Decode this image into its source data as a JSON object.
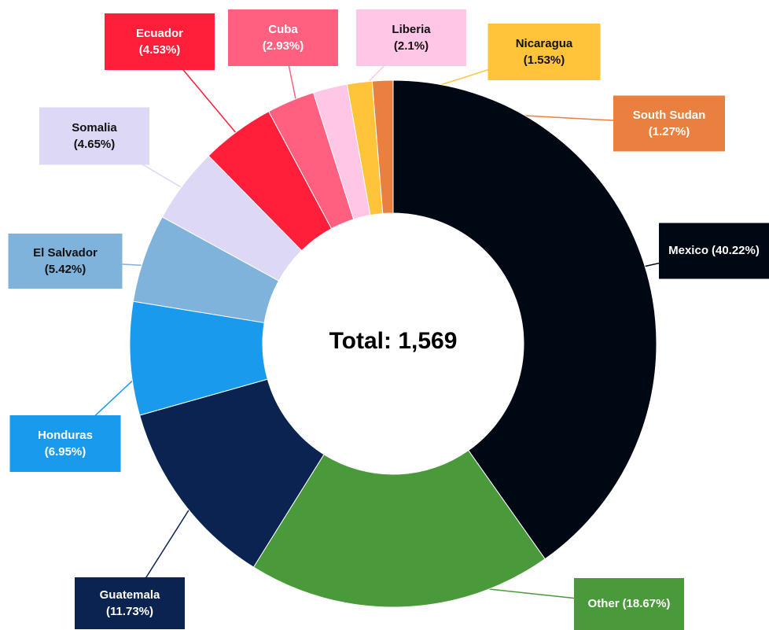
{
  "chart_data": {
    "type": "donut",
    "center_label": "Total: 1,569",
    "categories": [
      "Mexico",
      "Other",
      "Guatemala",
      "Honduras",
      "El Salvador",
      "Somalia",
      "Ecuador",
      "Cuba",
      "Liberia",
      "Nicaragua",
      "South Sudan"
    ],
    "values": [
      40.22,
      18.67,
      11.73,
      6.95,
      5.42,
      4.65,
      4.53,
      2.93,
      2.1,
      1.53,
      1.27
    ],
    "value_labels": [
      "(40.22%)",
      "(18.67%)",
      "(11.73%)",
      "(6.95%)",
      "(5.42%)",
      "(4.65%)",
      "(4.53%)",
      "(2.93%)",
      "(2.1%)",
      "(1.53%)",
      "(1.27%)"
    ],
    "colors": [
      "#000814",
      "#4a9a3c",
      "#0a2351",
      "#1a9aec",
      "#7fb3dc",
      "#dcd8f5",
      "#ff1f3a",
      "#ff6080",
      "#ffc6e6",
      "#ffc43a",
      "#ea8040"
    ]
  }
}
